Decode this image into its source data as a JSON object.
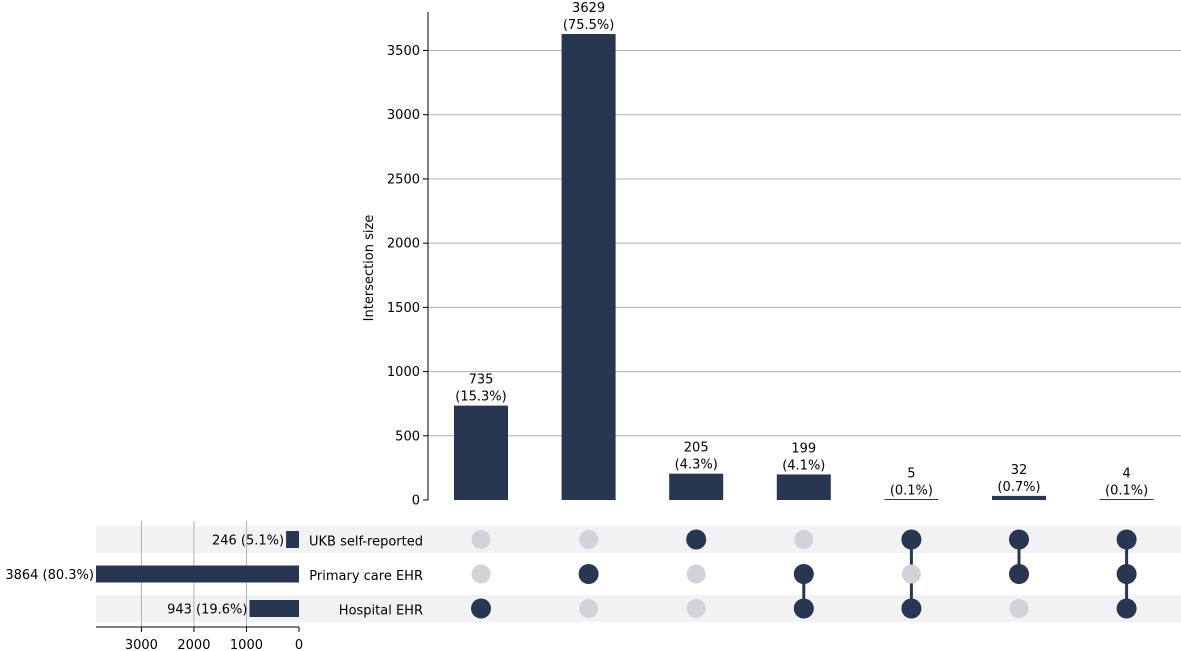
{
  "chart_data": {
    "type": "upset",
    "title": "",
    "ylabel": "Intersection size",
    "ylim": [
      0,
      3800
    ],
    "yticks": [
      0,
      500,
      1000,
      1500,
      2000,
      2500,
      3000,
      3500
    ],
    "sets": [
      {
        "name": "UKB self-reported",
        "size": 246,
        "size_label": "246 (5.1%)"
      },
      {
        "name": "Primary care EHR",
        "size": 3864,
        "size_label": "3864 (80.3%)"
      },
      {
        "name": "Hospital EHR",
        "size": 943,
        "size_label": "943 (19.6%)"
      }
    ],
    "set_size_xlim": [
      0,
      3864
    ],
    "set_size_xticks": [
      3000,
      2000,
      1000,
      0
    ],
    "intersections": [
      {
        "members": [
          "Hospital EHR"
        ],
        "value": 735,
        "pct": "(15.3%)"
      },
      {
        "members": [
          "Primary care EHR"
        ],
        "value": 3629,
        "pct": "(75.5%)"
      },
      {
        "members": [
          "UKB self-reported"
        ],
        "value": 205,
        "pct": "(4.3%)"
      },
      {
        "members": [
          "Primary care EHR",
          "Hospital EHR"
        ],
        "value": 199,
        "pct": "(4.1%)"
      },
      {
        "members": [
          "UKB self-reported",
          "Hospital EHR"
        ],
        "value": 5,
        "pct": "(0.1%)"
      },
      {
        "members": [
          "UKB self-reported",
          "Primary care EHR"
        ],
        "value": 32,
        "pct": "(0.7%)"
      },
      {
        "members": [
          "UKB self-reported",
          "Primary care EHR",
          "Hospital EHR"
        ],
        "value": 4,
        "pct": "(0.1%)"
      }
    ],
    "grid": true,
    "colors": {
      "bar": "#283651",
      "inactive_dot": "#d1d3d9",
      "stripe": "#f2f2f4",
      "grid": "#b0b0b0"
    }
  }
}
